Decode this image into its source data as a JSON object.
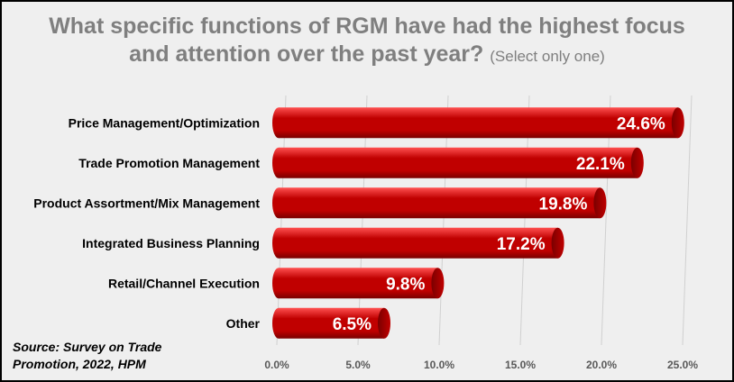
{
  "chart_data": {
    "type": "bar",
    "orientation": "horizontal",
    "title_main_line1": "What specific functions of RGM have had the highest focus",
    "title_main_line2": "and attention over the past year?",
    "title_note": "(Select only one)",
    "categories": [
      "Price Management/Optimization",
      "Trade Promotion Management",
      "Product Assortment/Mix Management",
      "Integrated Business Planning",
      "Retail/Channel Execution",
      "Other"
    ],
    "values": [
      24.6,
      22.1,
      19.8,
      17.2,
      9.8,
      6.5
    ],
    "data_labels": [
      "24.6%",
      "22.1%",
      "19.8%",
      "17.2%",
      "9.8%",
      "6.5%"
    ],
    "xlim": [
      0,
      25
    ],
    "x_ticks": [
      0,
      5,
      10,
      15,
      20,
      25
    ],
    "x_tick_labels": [
      "0.0%",
      "5.0%",
      "10.0%",
      "15.0%",
      "20.0%",
      "25.0%"
    ],
    "xlabel": "",
    "ylabel": "",
    "grid": true,
    "bar_color": "#c00000",
    "bar_highlight": "#ff5050",
    "bar_shadow": "#7a0000"
  },
  "source_line1": "Source: Survey on Trade",
  "source_line2": "Promotion, 2022, HPM"
}
